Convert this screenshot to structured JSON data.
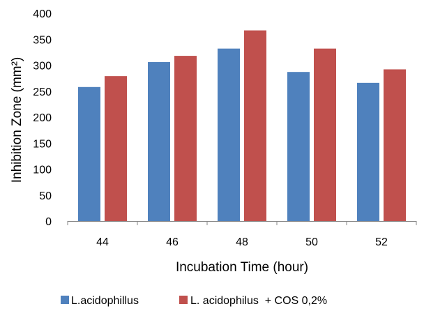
{
  "chart_data": {
    "type": "bar",
    "categories": [
      "44",
      "46",
      "48",
      "50",
      "52"
    ],
    "series": [
      {
        "name": "L.acidophillus",
        "values": [
          258,
          306,
          332,
          287,
          266
        ],
        "color": "#4F81BD"
      },
      {
        "name": "L. acidophilus  + COS 0,2%",
        "values": [
          279,
          318,
          367,
          332,
          292
        ],
        "color": "#C0504D"
      }
    ],
    "xlabel": "Incubation Time (hour)",
    "ylabel": "Inhibition Zone (mm²)",
    "ylim": [
      0,
      400
    ],
    "yticks": [
      0,
      50,
      100,
      150,
      200,
      250,
      300,
      350,
      400
    ],
    "grid": false,
    "legend_position": "bottom"
  }
}
